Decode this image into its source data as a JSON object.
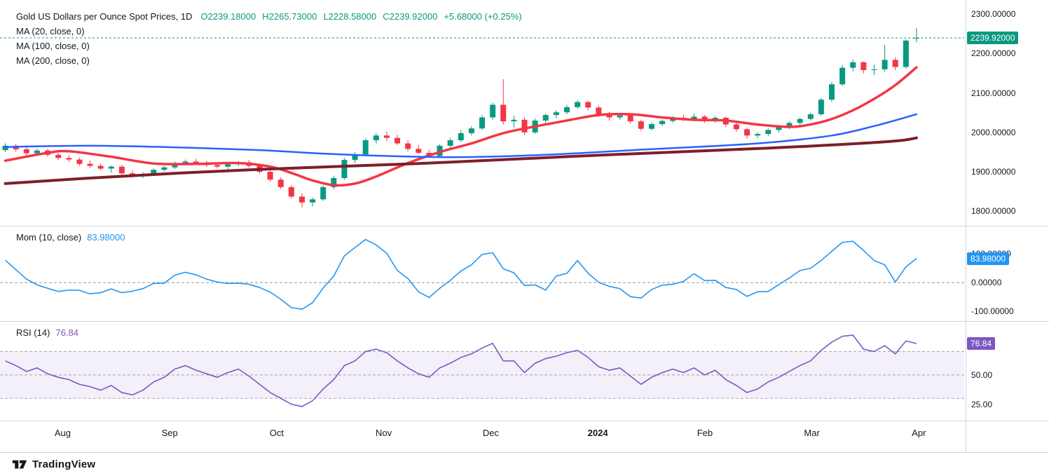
{
  "legend": {
    "title": "Gold US Dollars per Ounce Spot Prices, 1D",
    "open": "O2239.18000",
    "high": "H2265.73000",
    "low": "L2228.58000",
    "close": "C2239.92000",
    "change": "+5.68000 (+0.25%)",
    "ma": [
      "MA (20, close, 0)",
      "MA (100, close, 0)",
      "MA (200, close, 0)"
    ]
  },
  "mom_legend": {
    "label": "Mom (10, close)",
    "value": "83.98000"
  },
  "rsi_legend": {
    "label": "RSI (14)",
    "value": "76.84"
  },
  "badges": {
    "price": "2239.92000",
    "mom": "83.98000",
    "rsi": "76.84"
  },
  "time_axis": {
    "labels": [
      {
        "label": "Aug"
      },
      {
        "label": "Sep"
      },
      {
        "label": "Oct"
      },
      {
        "label": "Nov"
      },
      {
        "label": "Dec"
      },
      {
        "label": "2024",
        "bold": true
      },
      {
        "label": "Feb"
      },
      {
        "label": "Mar"
      },
      {
        "label": "Apr"
      }
    ]
  },
  "footer": {
    "brand": "TradingView"
  },
  "chart_data": [
    {
      "type": "candlestick",
      "title": "Gold US Dollars per Ounce Spot Prices",
      "timeframe": "1D",
      "ohlc_last": {
        "open": 2239.18,
        "high": 2265.73,
        "low": 2228.58,
        "close": 2239.92,
        "change": 5.68,
        "change_pct": 0.25
      },
      "last_close": 2239.92,
      "up_color": "#089981",
      "down_color": "#F23645",
      "ylim": [
        1763,
        2336
      ],
      "total_slots": 91,
      "x_ticks": [
        "Aug",
        "Sep",
        "Oct",
        "Nov",
        "Dec",
        "2024",
        "Feb",
        "Mar",
        "Apr"
      ],
      "yticks": [
        {
          "v": 2300,
          "label": "2300.00000"
        },
        {
          "v": 2200,
          "label": "2200.00000"
        },
        {
          "v": 2100,
          "label": "2100.00000"
        },
        {
          "v": 2000,
          "label": "2000.00000"
        },
        {
          "v": 1900,
          "label": "1900.00000"
        },
        {
          "v": 1800,
          "label": "1800.00000"
        }
      ],
      "candles_ohlc": [
        [
          1955,
          1972,
          1950,
          1966
        ],
        [
          1966,
          1970,
          1951,
          1957
        ],
        [
          1957,
          1963,
          1942,
          1947
        ],
        [
          1947,
          1959,
          1941,
          1954
        ],
        [
          1954,
          1958,
          1938,
          1943
        ],
        [
          1943,
          1948,
          1930,
          1935
        ],
        [
          1935,
          1942,
          1925,
          1931
        ],
        [
          1931,
          1936,
          1915,
          1920
        ],
        [
          1920,
          1928,
          1910,
          1915
        ],
        [
          1915,
          1921,
          1903,
          1908
        ],
        [
          1908,
          1916,
          1898,
          1913
        ],
        [
          1913,
          1918,
          1892,
          1896
        ],
        [
          1896,
          1904,
          1885,
          1890
        ],
        [
          1890,
          1899,
          1884,
          1894
        ],
        [
          1894,
          1908,
          1890,
          1905
        ],
        [
          1905,
          1915,
          1900,
          1911
        ],
        [
          1911,
          1926,
          1907,
          1922
        ],
        [
          1922,
          1931,
          1916,
          1926
        ],
        [
          1926,
          1933,
          1918,
          1921
        ],
        [
          1921,
          1928,
          1912,
          1917
        ],
        [
          1917,
          1924,
          1908,
          1913
        ],
        [
          1913,
          1922,
          1906,
          1919
        ],
        [
          1919,
          1927,
          1914,
          1924
        ],
        [
          1924,
          1930,
          1910,
          1915
        ],
        [
          1915,
          1919,
          1895,
          1900
        ],
        [
          1900,
          1907,
          1875,
          1880
        ],
        [
          1880,
          1886,
          1856,
          1861
        ],
        [
          1861,
          1866,
          1832,
          1837
        ],
        [
          1837,
          1845,
          1810,
          1822
        ],
        [
          1822,
          1835,
          1812,
          1830
        ],
        [
          1830,
          1866,
          1826,
          1861
        ],
        [
          1861,
          1890,
          1856,
          1884
        ],
        [
          1884,
          1935,
          1880,
          1930
        ],
        [
          1930,
          1950,
          1922,
          1944
        ],
        [
          1944,
          1985,
          1940,
          1980
        ],
        [
          1980,
          1998,
          1972,
          1992
        ],
        [
          1992,
          2002,
          1978,
          1986
        ],
        [
          1986,
          1994,
          1968,
          1972
        ],
        [
          1972,
          1980,
          1952,
          1958
        ],
        [
          1958,
          1968,
          1944,
          1948
        ],
        [
          1948,
          1956,
          1936,
          1940
        ],
        [
          1940,
          1970,
          1938,
          1966
        ],
        [
          1966,
          1986,
          1960,
          1980
        ],
        [
          1980,
          2006,
          1976,
          1998
        ],
        [
          1998,
          2016,
          1992,
          2010
        ],
        [
          2010,
          2044,
          2006,
          2038
        ],
        [
          2038,
          2075,
          2032,
          2070
        ],
        [
          2070,
          2135,
          2020,
          2028
        ],
        [
          2028,
          2042,
          2012,
          2032
        ],
        [
          2032,
          2038,
          1993,
          2000
        ],
        [
          2000,
          2035,
          1996,
          2030
        ],
        [
          2030,
          2048,
          2022,
          2044
        ],
        [
          2044,
          2056,
          2036,
          2051
        ],
        [
          2051,
          2070,
          2046,
          2064
        ],
        [
          2064,
          2082,
          2060,
          2077
        ],
        [
          2077,
          2080,
          2056,
          2063
        ],
        [
          2063,
          2068,
          2040,
          2045
        ],
        [
          2045,
          2052,
          2030,
          2038
        ],
        [
          2038,
          2048,
          2032,
          2043
        ],
        [
          2043,
          2046,
          2022,
          2028
        ],
        [
          2028,
          2032,
          2004,
          2009
        ],
        [
          2009,
          2025,
          2005,
          2021
        ],
        [
          2021,
          2033,
          2016,
          2029
        ],
        [
          2029,
          2041,
          2024,
          2037
        ],
        [
          2037,
          2044,
          2028,
          2032
        ],
        [
          2032,
          2048,
          2028,
          2040
        ],
        [
          2040,
          2044,
          2024,
          2028
        ],
        [
          2028,
          2042,
          2024,
          2037
        ],
        [
          2037,
          2040,
          2014,
          2020
        ],
        [
          2020,
          2028,
          2002,
          2008
        ],
        [
          2008,
          2012,
          1984,
          1992
        ],
        [
          1992,
          2000,
          1986,
          1996
        ],
        [
          1996,
          2010,
          1990,
          2006
        ],
        [
          2006,
          2018,
          2000,
          2013
        ],
        [
          2013,
          2028,
          2008,
          2024
        ],
        [
          2024,
          2038,
          2018,
          2034
        ],
        [
          2034,
          2050,
          2030,
          2046
        ],
        [
          2046,
          2088,
          2042,
          2083
        ],
        [
          2083,
          2128,
          2078,
          2122
        ],
        [
          2122,
          2170,
          2118,
          2164
        ],
        [
          2164,
          2185,
          2155,
          2178
        ],
        [
          2178,
          2180,
          2150,
          2158
        ],
        [
          2158,
          2172,
          2146,
          2160
        ],
        [
          2160,
          2222,
          2154,
          2184
        ],
        [
          2184,
          2190,
          2158,
          2166
        ],
        [
          2166,
          2236,
          2162,
          2233
        ],
        [
          2239.18,
          2265.73,
          2228.58,
          2239.92
        ]
      ],
      "overlays": [
        {
          "name": "MA (20, close, 0)",
          "dom_name": "ma-20-line",
          "color": "#F23645",
          "width": 3.5,
          "anchors": [
            [
              0,
              1928
            ],
            [
              4,
              1948
            ],
            [
              6,
              1952
            ],
            [
              10,
              1938
            ],
            [
              14,
              1921
            ],
            [
              18,
              1920
            ],
            [
              22,
              1922
            ],
            [
              25,
              1913
            ],
            [
              27,
              1897
            ],
            [
              29,
              1878
            ],
            [
              31,
              1866
            ],
            [
              33,
              1870
            ],
            [
              35,
              1888
            ],
            [
              38,
              1922
            ],
            [
              41,
              1950
            ],
            [
              44,
              1972
            ],
            [
              47,
              1998
            ],
            [
              50,
              2015
            ],
            [
              53,
              2030
            ],
            [
              56,
              2044
            ],
            [
              59,
              2046
            ],
            [
              62,
              2038
            ],
            [
              65,
              2032
            ],
            [
              68,
              2030
            ],
            [
              71,
              2020
            ],
            [
              74,
              2014
            ],
            [
              76,
              2020
            ],
            [
              78,
              2034
            ],
            [
              80,
              2056
            ],
            [
              82,
              2085
            ],
            [
              84,
              2120
            ],
            [
              86,
              2165
            ]
          ]
        },
        {
          "name": "MA (100, close, 0)",
          "dom_name": "ma-100-line",
          "color": "#2962FF",
          "width": 2.5,
          "anchors": [
            [
              0,
              1963
            ],
            [
              8,
              1966
            ],
            [
              16,
              1962
            ],
            [
              24,
              1955
            ],
            [
              30,
              1946
            ],
            [
              36,
              1940
            ],
            [
              42,
              1937
            ],
            [
              48,
              1940
            ],
            [
              54,
              1947
            ],
            [
              60,
              1956
            ],
            [
              66,
              1964
            ],
            [
              72,
              1974
            ],
            [
              78,
              1992
            ],
            [
              82,
              2016
            ],
            [
              86,
              2046
            ]
          ]
        },
        {
          "name": "MA (200, close, 0)",
          "dom_name": "ma-200-line",
          "color": "#7D1F2B",
          "width": 4,
          "anchors": [
            [
              0,
              1870
            ],
            [
              8,
              1884
            ],
            [
              16,
              1896
            ],
            [
              24,
              1906
            ],
            [
              32,
              1914
            ],
            [
              40,
              1922
            ],
            [
              48,
              1932
            ],
            [
              56,
              1942
            ],
            [
              64,
              1951
            ],
            [
              72,
              1960
            ],
            [
              78,
              1968
            ],
            [
              84,
              1978
            ],
            [
              86,
              1986
            ]
          ]
        }
      ]
    },
    {
      "type": "line",
      "name": "Mom (10, close)",
      "color": "#2196F3",
      "ylim": [
        -134,
        198
      ],
      "zero_line": 0,
      "last_value": 83.98,
      "yticks": [
        {
          "v": 100,
          "label": "100.00000"
        },
        {
          "v": 0,
          "label": "0.00000"
        },
        {
          "v": -100,
          "label": "-100.00000"
        }
      ],
      "values": [
        78,
        45,
        12,
        -8,
        -20,
        -31,
        -26,
        -27,
        -39,
        -35,
        -22,
        -35,
        -30,
        -21,
        -3,
        -2,
        26,
        36,
        27,
        12,
        2,
        -3,
        -2,
        -6,
        -17,
        -33,
        -58,
        -87,
        -93,
        -70,
        -19,
        23,
        93,
        122,
        150,
        131,
        102,
        42,
        14,
        -32,
        -52,
        -20,
        8,
        40,
        62,
        98,
        104,
        48,
        34,
        -10,
        -8,
        -26,
        23,
        32,
        77,
        33,
        1,
        -13,
        -21,
        -49,
        -54,
        -24,
        -9,
        -6,
        4,
        31,
        7,
        8,
        -17,
        -24,
        -48,
        -32,
        -31,
        -7,
        16,
        42,
        50,
        77,
        109,
        140,
        144,
        112,
        77,
        62,
        2,
        55,
        83.98
      ]
    },
    {
      "type": "line",
      "name": "RSI (14)",
      "color": "#7E57C2",
      "band": [
        30,
        70
      ],
      "mid_line": 50,
      "ylim": [
        11,
        96
      ],
      "last_value": 76.84,
      "yticks": [
        {
          "v": 75,
          "label": "75.00"
        },
        {
          "v": 50,
          "label": "50.00"
        },
        {
          "v": 25,
          "label": "25.00"
        }
      ],
      "values": [
        62,
        58,
        53,
        56,
        51,
        48,
        46,
        42,
        40,
        37,
        41,
        35,
        33,
        37,
        44,
        48,
        55,
        58,
        54,
        51,
        48,
        52,
        55,
        49,
        42,
        35,
        30,
        25,
        23,
        28,
        38,
        46,
        58,
        62,
        70,
        72,
        69,
        62,
        56,
        51,
        48,
        56,
        60,
        65,
        68,
        73,
        77,
        62,
        62,
        52,
        60,
        64,
        66,
        69,
        71,
        65,
        57,
        54,
        56,
        49,
        42,
        48,
        52,
        55,
        52,
        56,
        50,
        54,
        46,
        41,
        35,
        38,
        44,
        48,
        53,
        58,
        62,
        71,
        78,
        83,
        84,
        72,
        70,
        75,
        68,
        79,
        76.84
      ]
    }
  ]
}
